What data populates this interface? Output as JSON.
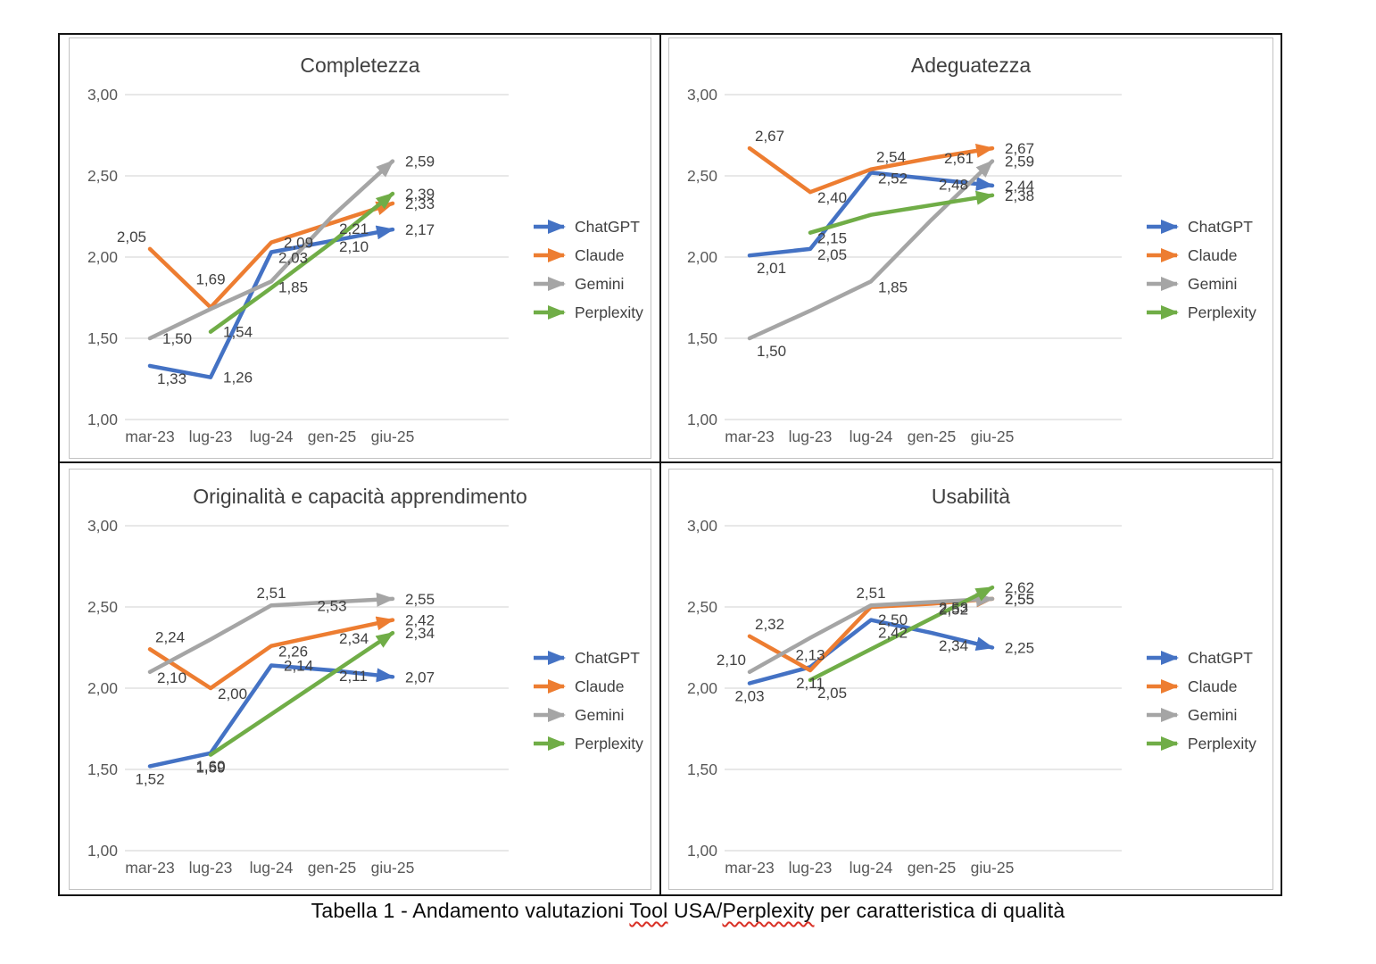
{
  "caption": {
    "part1": "Tabella 1 - Andamento valutazioni ",
    "misspelled1": "Tool",
    "part2": " USA/",
    "misspelled2": "Perplexity",
    "part3": " per caratteristica di qualità"
  },
  "palette": {
    "ChatGPT": "#4472C4",
    "Claude": "#ED7D31",
    "Gemini": "#A5A5A5",
    "Perplexity": "#70AD47"
  },
  "style_colors": {
    "gridline": "#D9D9D9",
    "tick_text": "#595959",
    "title_text": "#3F3F3F",
    "data_label_text": "#404040",
    "spellcheck_squiggle": "#D93025"
  },
  "legend": {
    "position": "right",
    "items": [
      "ChatGPT",
      "Claude",
      "Gemini",
      "Perplexity"
    ]
  },
  "chart_data": [
    {
      "type": "line",
      "title": "Completezza",
      "categories": [
        "mar-23",
        "lug-23",
        "lug-24",
        "gen-25",
        "giu-25"
      ],
      "ylim": [
        1,
        3
      ],
      "grid": true,
      "legend_position": "right",
      "y_ticks": [
        {
          "v": 3.0,
          "label": "3,00"
        },
        {
          "v": 2.5,
          "label": "2,50"
        },
        {
          "v": 2.0,
          "label": "2,00"
        },
        {
          "v": 1.5,
          "label": "1,50"
        },
        {
          "v": 1.0,
          "label": "1,00"
        }
      ],
      "series": [
        {
          "name": "ChatGPT",
          "color": "#4472C4",
          "values": [
            1.33,
            1.26,
            2.03,
            2.1,
            2.17
          ],
          "labels": [
            {
              "text": "1,33",
              "pos": "below-right"
            },
            {
              "text": "1,26",
              "pos": "right"
            },
            {
              "text": "2,03",
              "pos": "on-right"
            },
            {
              "text": "2,10",
              "pos": "on-right"
            },
            {
              "text": "2,17",
              "pos": "right"
            }
          ]
        },
        {
          "name": "Claude",
          "color": "#ED7D31",
          "values": [
            2.05,
            1.69,
            2.09,
            2.21,
            2.33
          ],
          "labels": [
            {
              "text": "2,05",
              "pos": "above-left"
            },
            {
              "text": "1,69",
              "pos": "above-far"
            },
            {
              "text": "2,09",
              "pos": "right"
            },
            {
              "text": "2,21",
              "pos": "on-right"
            },
            {
              "text": "2,33",
              "pos": "right"
            }
          ]
        },
        {
          "name": "Gemini",
          "color": "#A5A5A5",
          "values": [
            1.5,
            1.68,
            1.85,
            2.25,
            2.59
          ],
          "labels": [
            {
              "text": "1,50",
              "pos": "right"
            },
            null,
            {
              "text": "1,85",
              "pos": "on-right"
            },
            null,
            {
              "text": "2,59",
              "pos": "right"
            }
          ]
        },
        {
          "name": "Perplexity",
          "color": "#70AD47",
          "values": [
            null,
            1.54,
            1.81,
            2.09,
            2.39
          ],
          "labels": [
            null,
            {
              "text": "1,54",
              "pos": "right"
            },
            null,
            null,
            {
              "text": "2,39",
              "pos": "right"
            }
          ]
        }
      ]
    },
    {
      "type": "line",
      "title": "Adeguatezza",
      "categories": [
        "mar-23",
        "lug-23",
        "lug-24",
        "gen-25",
        "giu-25"
      ],
      "ylim": [
        1,
        3
      ],
      "grid": true,
      "legend_position": "right",
      "y_ticks": [
        {
          "v": 3.0,
          "label": "3,00"
        },
        {
          "v": 2.5,
          "label": "2,50"
        },
        {
          "v": 2.0,
          "label": "2,00"
        },
        {
          "v": 1.5,
          "label": "1,50"
        },
        {
          "v": 1.0,
          "label": "1,00"
        }
      ],
      "series": [
        {
          "name": "ChatGPT",
          "color": "#4472C4",
          "values": [
            2.01,
            2.05,
            2.52,
            2.48,
            2.44
          ],
          "labels": [
            {
              "text": "2,01",
              "pos": "below-right"
            },
            {
              "text": "2,05",
              "pos": "on-right"
            },
            {
              "text": "2,52",
              "pos": "on-right"
            },
            {
              "text": "2,48",
              "pos": "on-right"
            },
            {
              "text": "2,44",
              "pos": "right"
            }
          ]
        },
        {
          "name": "Claude",
          "color": "#ED7D31",
          "values": [
            2.67,
            2.4,
            2.54,
            2.61,
            2.67
          ],
          "labels": [
            {
              "text": "2,67",
              "pos": "above-right"
            },
            {
              "text": "2,40",
              "pos": "on-right"
            },
            {
              "text": "2,54",
              "pos": "above-right"
            },
            {
              "text": "2,61",
              "pos": "right"
            },
            {
              "text": "2,67",
              "pos": "right"
            }
          ]
        },
        {
          "name": "Gemini",
          "color": "#A5A5A5",
          "values": [
            1.5,
            1.67,
            1.85,
            2.23,
            2.59
          ],
          "labels": [
            {
              "text": "1,50",
              "pos": "below-right"
            },
            null,
            {
              "text": "1,85",
              "pos": "on-right"
            },
            null,
            {
              "text": "2,59",
              "pos": "right"
            }
          ]
        },
        {
          "name": "Perplexity",
          "color": "#70AD47",
          "values": [
            null,
            2.15,
            2.26,
            2.32,
            2.38
          ],
          "labels": [
            null,
            {
              "text": "2,15",
              "pos": "on-right"
            },
            null,
            null,
            {
              "text": "2,38",
              "pos": "right"
            }
          ]
        }
      ]
    },
    {
      "type": "line",
      "title": "Originalità e capacità apprendimento",
      "categories": [
        "mar-23",
        "lug-23",
        "lug-24",
        "gen-25",
        "giu-25"
      ],
      "ylim": [
        1,
        3
      ],
      "grid": true,
      "legend_position": "right",
      "y_ticks": [
        {
          "v": 3.0,
          "label": "3,00"
        },
        {
          "v": 2.5,
          "label": "2,50"
        },
        {
          "v": 2.0,
          "label": "2,00"
        },
        {
          "v": 1.5,
          "label": "1,50"
        },
        {
          "v": 1.0,
          "label": "1,00"
        }
      ],
      "series": [
        {
          "name": "ChatGPT",
          "color": "#4472C4",
          "values": [
            1.52,
            1.6,
            2.14,
            2.11,
            2.07
          ],
          "labels": [
            {
              "text": "1,52",
              "pos": "below"
            },
            {
              "text": "1,60",
              "pos": "below"
            },
            {
              "text": "2,14",
              "pos": "right"
            },
            {
              "text": "2,11",
              "pos": "on-right"
            },
            {
              "text": "2,07",
              "pos": "right"
            }
          ]
        },
        {
          "name": "Claude",
          "color": "#ED7D31",
          "values": [
            2.24,
            2.0,
            2.26,
            2.34,
            2.42
          ],
          "labels": [
            {
              "text": "2,24",
              "pos": "above-right"
            },
            {
              "text": "2,00",
              "pos": "on-right"
            },
            {
              "text": "2,26",
              "pos": "on-right"
            },
            {
              "text": "2,34",
              "pos": "on-right"
            },
            {
              "text": "2,42",
              "pos": "right"
            }
          ]
        },
        {
          "name": "Gemini",
          "color": "#A5A5A5",
          "values": [
            2.1,
            2.3,
            2.51,
            2.53,
            2.55
          ],
          "labels": [
            {
              "text": "2,10",
              "pos": "on-right"
            },
            null,
            {
              "text": "2,51",
              "pos": "above"
            },
            {
              "text": "2,53",
              "pos": "on"
            },
            {
              "text": "2,55",
              "pos": "right"
            }
          ]
        },
        {
          "name": "Perplexity",
          "color": "#70AD47",
          "values": [
            null,
            1.59,
            1.84,
            2.09,
            2.34
          ],
          "labels": [
            null,
            {
              "text": "1,59",
              "pos": "below"
            },
            null,
            null,
            {
              "text": "2,34",
              "pos": "right"
            }
          ]
        }
      ]
    },
    {
      "type": "line",
      "title": "Usabilità",
      "categories": [
        "mar-23",
        "lug-23",
        "lug-24",
        "gen-25",
        "giu-25"
      ],
      "ylim": [
        1,
        3
      ],
      "grid": true,
      "legend_position": "right",
      "y_ticks": [
        {
          "v": 3.0,
          "label": "3,00"
        },
        {
          "v": 2.5,
          "label": "2,50"
        },
        {
          "v": 2.0,
          "label": "2,00"
        },
        {
          "v": 1.5,
          "label": "1,50"
        },
        {
          "v": 1.0,
          "label": "1,00"
        }
      ],
      "series": [
        {
          "name": "ChatGPT",
          "color": "#4472C4",
          "values": [
            2.03,
            2.13,
            2.42,
            2.34,
            2.25
          ],
          "labels": [
            {
              "text": "2,03",
              "pos": "below"
            },
            {
              "text": "2,13",
              "pos": "above"
            },
            {
              "text": "2,42",
              "pos": "below-right"
            },
            {
              "text": "2,34",
              "pos": "below-right"
            },
            {
              "text": "2,25",
              "pos": "right"
            }
          ]
        },
        {
          "name": "Claude",
          "color": "#ED7D31",
          "values": [
            2.32,
            2.11,
            2.5,
            2.52,
            2.55
          ],
          "labels": [
            {
              "text": "2,32",
              "pos": "above-right"
            },
            {
              "text": "2,11",
              "pos": "below"
            },
            {
              "text": "2,50",
              "pos": "below-right"
            },
            {
              "text": "2,52",
              "pos": "on-right"
            },
            {
              "text": "2,55",
              "pos": "right"
            }
          ]
        },
        {
          "name": "Gemini",
          "color": "#A5A5A5",
          "values": [
            2.1,
            2.31,
            2.51,
            2.53,
            2.55
          ],
          "labels": [
            {
              "text": "2,10",
              "pos": "above-left"
            },
            null,
            {
              "text": "2,51",
              "pos": "above"
            },
            {
              "text": "2,53",
              "pos": "on-right"
            },
            {
              "text": "2,55",
              "pos": "right"
            }
          ]
        },
        {
          "name": "Perplexity",
          "color": "#70AD47",
          "values": [
            null,
            2.05,
            2.24,
            2.43,
            2.62
          ],
          "labels": [
            null,
            {
              "text": "2,05",
              "pos": "below-right"
            },
            null,
            null,
            {
              "text": "2,62",
              "pos": "right"
            }
          ]
        }
      ]
    }
  ]
}
